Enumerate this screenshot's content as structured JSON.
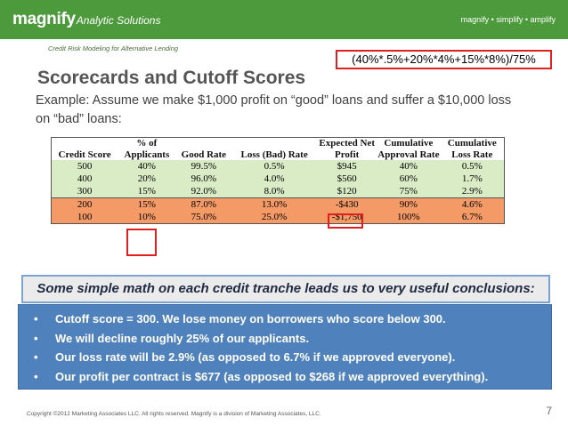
{
  "header": {
    "brand_name": "magnify",
    "brand_tagline": "Analytic Solutions",
    "slogan": "magnify • simplify • amplify",
    "bar_color": "#4c9a3c"
  },
  "subtitle": "Credit Risk Modeling for Alternative Lending",
  "formula": "(40%*.5%+20%*4%+15%*8%)/75%",
  "title": "Scorecards and Cutoff Scores",
  "intro": "Example: Assume we make $1,000 profit on “good” loans and suffer a $10,000 loss on “bad” loans:",
  "table": {
    "headers": [
      "Credit Score",
      "% of Applicants",
      "Good Rate",
      "Loss (Bad) Rate",
      "Expected Net Profit",
      "Cumulative Approval Rate",
      "Cumulative Loss Rate"
    ],
    "rows": [
      {
        "band": "approved",
        "cells": [
          "500",
          "40%",
          "99.5%",
          "0.5%",
          "$945",
          "40%",
          "0.5%"
        ]
      },
      {
        "band": "approved",
        "cells": [
          "400",
          "20%",
          "96.0%",
          "4.0%",
          "$560",
          "60%",
          "1.7%"
        ]
      },
      {
        "band": "approved",
        "cells": [
          "300",
          "15%",
          "92.0%",
          "8.0%",
          "$120",
          "75%",
          "2.9%"
        ]
      },
      {
        "band": "declined",
        "cells": [
          "200",
          "15%",
          "87.0%",
          "13.0%",
          "-$430",
          "90%",
          "4.6%"
        ]
      },
      {
        "band": "declined",
        "cells": [
          "100",
          "10%",
          "75.0%",
          "25.0%",
          "-$1,750",
          "100%",
          "6.7%"
        ]
      }
    ],
    "approved_color": "#d9ecc6",
    "declined_color": "#f49a66"
  },
  "banner": "Some simple math on each credit tranche leads us to very useful conclusions:",
  "bullets": [
    "Cutoff score = 300.  We lose money on borrowers who score below 300.",
    "We will decline roughly 25% of our applicants.",
    "Our loss rate will be 2.9% (as opposed to 6.7% if we approved everyone).",
    "Our profit per contract is $677 (as opposed to $268 if we approved everything)."
  ],
  "highlight_color": "#e02020",
  "bullet_panel_color": "#4f81bd",
  "footer": {
    "copyright": "Copyright ©2012 Marketing Associates LLC. All rights reserved. Magnify is a division of Marketing Associates, LLC.",
    "page_number": "7"
  }
}
